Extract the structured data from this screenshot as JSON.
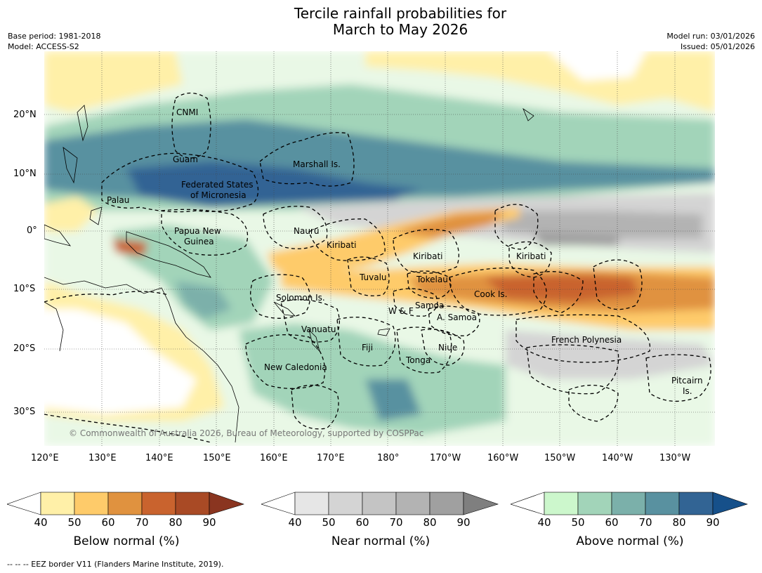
{
  "title": {
    "line1": "Tercile rainfall probabilities for",
    "line2": "March to May 2026"
  },
  "meta": {
    "base_period": "Base period: 1981-2018",
    "model": "Model: ACCESS-S2",
    "model_run": "Model run: 03/01/2026",
    "issued": "Issued: 05/01/2026"
  },
  "axes": {
    "lat_labels": [
      "20°N",
      "10°N",
      "0°",
      "10°S",
      "20°S",
      "30°S"
    ],
    "lon_labels": [
      "120°E",
      "130°E",
      "140°E",
      "150°E",
      "160°E",
      "170°E",
      "180°",
      "170°W",
      "160°W",
      "150°W",
      "140°W",
      "130°W"
    ]
  },
  "regions": [
    "CNMI",
    "Guam",
    "Marshall Is.",
    "Federated States",
    "of Micronesia",
    "Palau",
    "Papua New",
    "Guinea",
    "Nauru",
    "Kiribati",
    "Kiribati",
    "Kiribati",
    "Tuvalu",
    "Tokelau",
    "Cook Is.",
    "Solomon Is.",
    "Samoa",
    "W & F",
    "A. Samoa",
    "Vanuatu",
    "Fiji",
    "Niue",
    "French Polynesia",
    "Tonga",
    "New Caledonia",
    "Pitcairn",
    "Is."
  ],
  "copyright": "© Commonwealth of Australia 2026, Bureau of Meteorology, supported by COSPPac",
  "colorbars": [
    {
      "title": "Below normal (%)",
      "ticks": [
        "40",
        "50",
        "60",
        "70",
        "80",
        "90"
      ],
      "colors": [
        "#ffffff",
        "#fff0a8",
        "#fecb6a",
        "#e0923f",
        "#c9632e",
        "#a94a25",
        "#8a3520"
      ]
    },
    {
      "title": "Near normal (%)",
      "ticks": [
        "40",
        "50",
        "60",
        "70",
        "80",
        "90"
      ],
      "colors": [
        "#ffffff",
        "#e6e6e6",
        "#d4d4d4",
        "#c4c4c4",
        "#b3b3b3",
        "#a0a0a0",
        "#7f7f7f"
      ]
    },
    {
      "title": "Above normal (%)",
      "ticks": [
        "40",
        "50",
        "60",
        "70",
        "80",
        "90"
      ],
      "colors": [
        "#ffffff",
        "#ccf7cc",
        "#a2d4b9",
        "#7bb0aa",
        "#5991a0",
        "#326494",
        "#16508a"
      ]
    }
  ],
  "footer": "-- -- -- EEZ border V11 (Flanders Marine Institute, 2019)."
}
